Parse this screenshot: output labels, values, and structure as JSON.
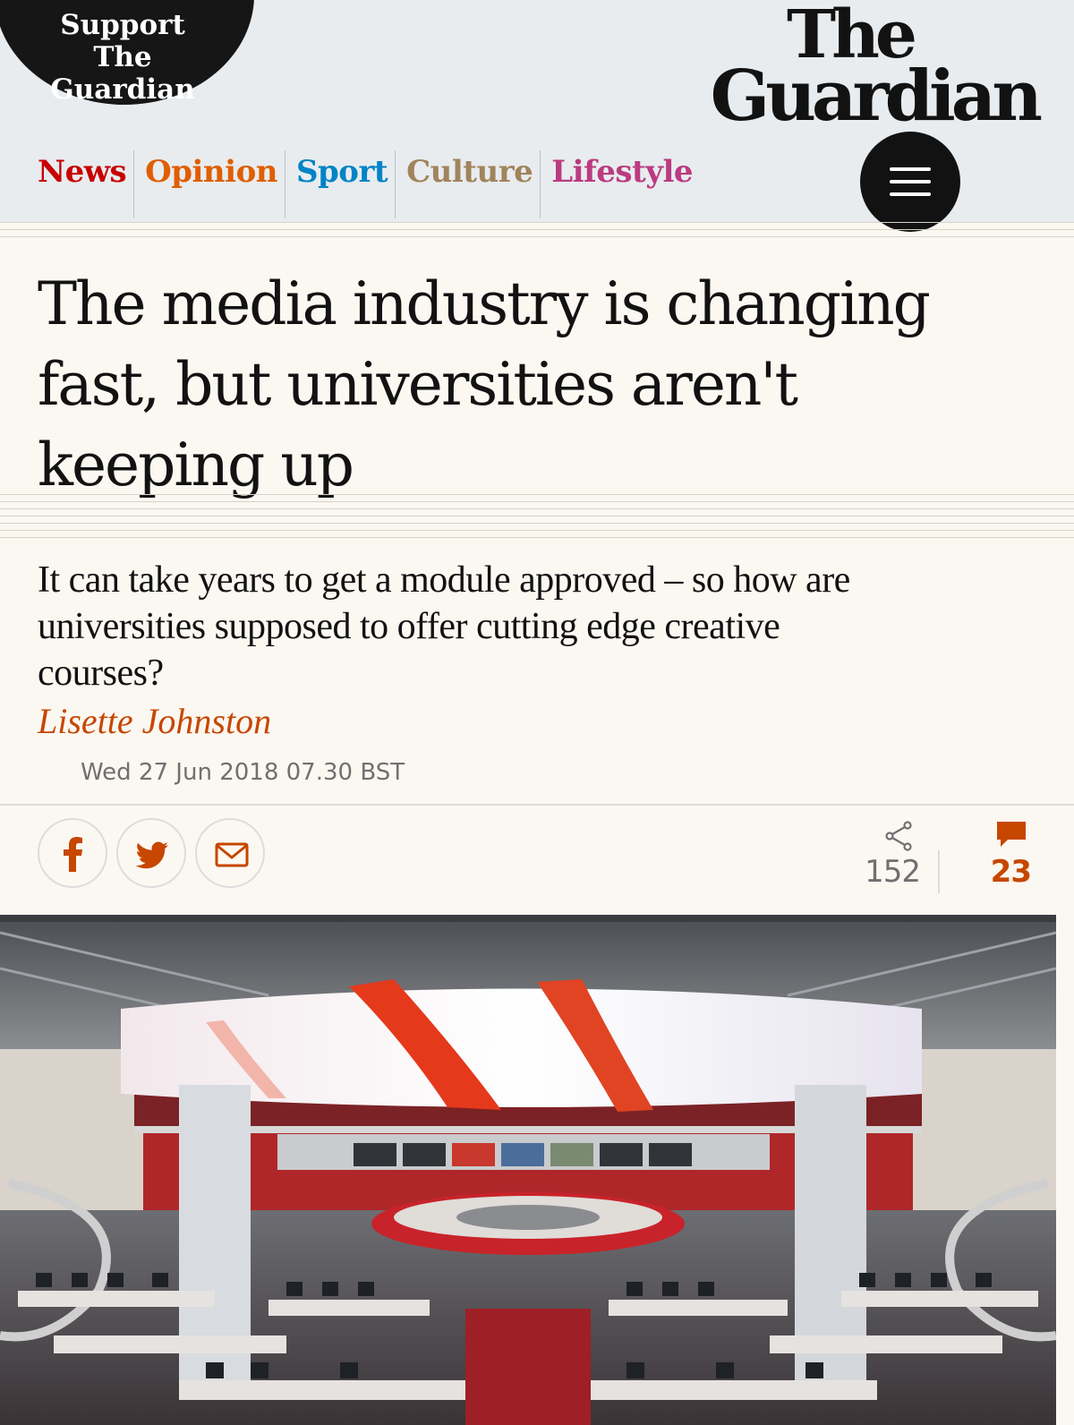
{
  "header": {
    "support_label": "Support The Guardian",
    "logo_line1": "The",
    "logo_line2": "Guardian",
    "nav": [
      {
        "label": "News",
        "color": "#c70000"
      },
      {
        "label": "Opinion",
        "color": "#e05e00"
      },
      {
        "label": "Sport",
        "color": "#0084c6"
      },
      {
        "label": "Culture",
        "color": "#a1845c"
      },
      {
        "label": "Lifestyle",
        "color": "#bb3b80"
      }
    ],
    "menu_icon": "hamburger-icon"
  },
  "article": {
    "headline": "The media industry is changing fast, but universities aren't keeping up",
    "standfirst": "It can take years to get a module approved – so how are universities supposed to offer cutting edge creative courses?",
    "byline": "Lisette Johnston",
    "dateline": "Wed 27 Jun 2018 07.30 BST"
  },
  "share": {
    "buttons": [
      "facebook-icon",
      "twitter-icon",
      "email-icon"
    ],
    "share_count": "152",
    "comment_count": "23"
  },
  "colors": {
    "accent_opinion": "#c74600",
    "background": "#fbf8f2",
    "header_bg": "#e8ecef"
  }
}
